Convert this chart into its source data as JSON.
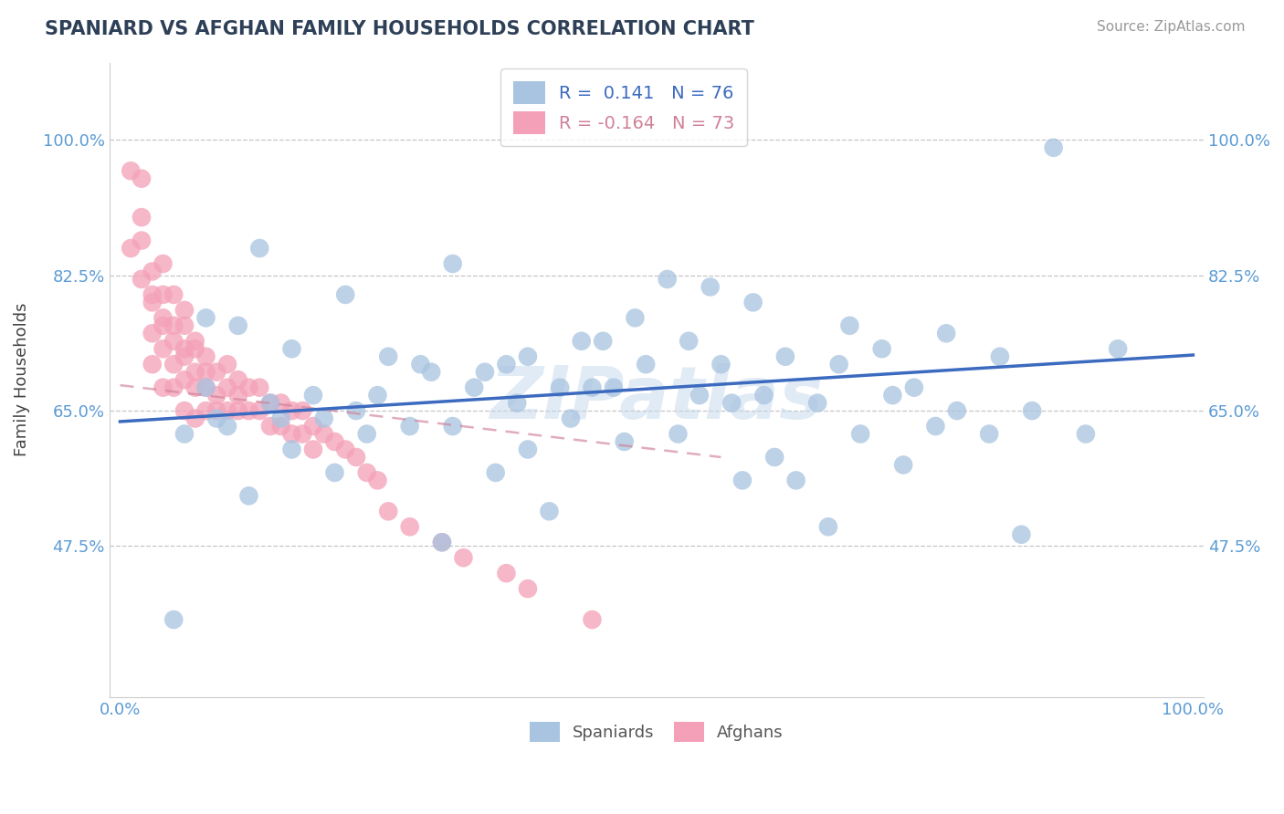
{
  "title": "SPANIARD VS AFGHAN FAMILY HOUSEHOLDS CORRELATION CHART",
  "source": "Source: ZipAtlas.com",
  "ylabel": "Family Households",
  "watermark": "ZIPatlas",
  "xlim": [
    -0.01,
    1.01
  ],
  "ylim": [
    0.28,
    1.1
  ],
  "yticks": [
    0.475,
    0.65,
    0.825,
    1.0
  ],
  "ytick_labels": [
    "47.5%",
    "65.0%",
    "82.5%",
    "100.0%"
  ],
  "xticks": [
    0.0,
    1.0
  ],
  "xtick_labels": [
    "0.0%",
    "100.0%"
  ],
  "legend_line1": "R =  0.141   N = 76",
  "legend_line2": "R = -0.164   N = 73",
  "spaniard_color": "#a8c4e0",
  "afghan_color": "#f4a0b8",
  "spaniard_line_color": "#3b6abf",
  "afghan_line_color": "#d08098",
  "title_color": "#2e4057",
  "axis_color": "#5b9bd5",
  "grid_color": "#b8b8b8",
  "background_color": "#ffffff",
  "spaniard_x": [
    0.87,
    0.13,
    0.31,
    0.11,
    0.55,
    0.08,
    0.48,
    0.21,
    0.43,
    0.51,
    0.77,
    0.63,
    0.16,
    0.38,
    0.68,
    0.08,
    0.28,
    0.34,
    0.25,
    0.59,
    0.45,
    0.71,
    0.18,
    0.36,
    0.53,
    0.82,
    0.14,
    0.62,
    0.29,
    0.74,
    0.41,
    0.56,
    0.22,
    0.67,
    0.09,
    0.49,
    0.33,
    0.78,
    0.15,
    0.44,
    0.6,
    0.24,
    0.72,
    0.37,
    0.54,
    0.85,
    0.19,
    0.46,
    0.31,
    0.65,
    0.1,
    0.57,
    0.27,
    0.76,
    0.42,
    0.9,
    0.06,
    0.52,
    0.23,
    0.69,
    0.38,
    0.81,
    0.16,
    0.47,
    0.61,
    0.35,
    0.73,
    0.2,
    0.58,
    0.93,
    0.12,
    0.4,
    0.66,
    0.3,
    0.84,
    0.05
  ],
  "spaniard_y": [
    0.99,
    0.86,
    0.84,
    0.76,
    0.81,
    0.77,
    0.77,
    0.8,
    0.74,
    0.82,
    0.75,
    0.56,
    0.73,
    0.72,
    0.76,
    0.68,
    0.71,
    0.7,
    0.72,
    0.79,
    0.74,
    0.73,
    0.67,
    0.71,
    0.74,
    0.72,
    0.66,
    0.72,
    0.7,
    0.68,
    0.68,
    0.71,
    0.65,
    0.71,
    0.64,
    0.71,
    0.68,
    0.65,
    0.64,
    0.68,
    0.67,
    0.67,
    0.67,
    0.66,
    0.67,
    0.65,
    0.64,
    0.68,
    0.63,
    0.66,
    0.63,
    0.66,
    0.63,
    0.63,
    0.64,
    0.62,
    0.62,
    0.62,
    0.62,
    0.62,
    0.6,
    0.62,
    0.6,
    0.61,
    0.59,
    0.57,
    0.58,
    0.57,
    0.56,
    0.73,
    0.54,
    0.52,
    0.5,
    0.48,
    0.49,
    0.38
  ],
  "afghan_x": [
    0.01,
    0.01,
    0.02,
    0.02,
    0.02,
    0.02,
    0.03,
    0.03,
    0.03,
    0.03,
    0.03,
    0.04,
    0.04,
    0.04,
    0.04,
    0.04,
    0.04,
    0.05,
    0.05,
    0.05,
    0.05,
    0.05,
    0.06,
    0.06,
    0.06,
    0.06,
    0.06,
    0.06,
    0.07,
    0.07,
    0.07,
    0.07,
    0.07,
    0.08,
    0.08,
    0.08,
    0.08,
    0.09,
    0.09,
    0.09,
    0.1,
    0.1,
    0.1,
    0.11,
    0.11,
    0.11,
    0.12,
    0.12,
    0.13,
    0.13,
    0.14,
    0.14,
    0.15,
    0.15,
    0.16,
    0.16,
    0.17,
    0.17,
    0.18,
    0.18,
    0.19,
    0.2,
    0.21,
    0.22,
    0.23,
    0.24,
    0.25,
    0.27,
    0.3,
    0.32,
    0.36,
    0.38,
    0.44
  ],
  "afghan_y": [
    0.86,
    0.96,
    0.87,
    0.9,
    0.82,
    0.95,
    0.8,
    0.83,
    0.75,
    0.79,
    0.71,
    0.84,
    0.76,
    0.8,
    0.73,
    0.77,
    0.68,
    0.8,
    0.76,
    0.71,
    0.74,
    0.68,
    0.78,
    0.73,
    0.76,
    0.69,
    0.72,
    0.65,
    0.74,
    0.7,
    0.73,
    0.68,
    0.64,
    0.72,
    0.68,
    0.65,
    0.7,
    0.7,
    0.67,
    0.65,
    0.71,
    0.68,
    0.65,
    0.69,
    0.67,
    0.65,
    0.68,
    0.65,
    0.68,
    0.65,
    0.66,
    0.63,
    0.66,
    0.63,
    0.65,
    0.62,
    0.65,
    0.62,
    0.63,
    0.6,
    0.62,
    0.61,
    0.6,
    0.59,
    0.57,
    0.56,
    0.52,
    0.5,
    0.48,
    0.46,
    0.44,
    0.42,
    0.38
  ],
  "sp_trend_x": [
    0.0,
    1.0
  ],
  "sp_trend_y": [
    0.636,
    0.722
  ],
  "af_trend_x": [
    0.0,
    0.56
  ],
  "af_trend_y": [
    0.683,
    0.59
  ]
}
